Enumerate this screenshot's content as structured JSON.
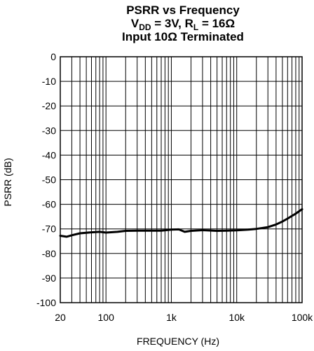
{
  "chart_data": {
    "type": "line",
    "title_lines": {
      "line1": "PSRR vs Frequency",
      "line2_v": "V",
      "line2_v_sub": "DD",
      "line2_mid": " = 3V, R",
      "line2_r_sub": "L",
      "line2_end": " = 16Ω",
      "line3": "Input 10Ω Terminated"
    },
    "xlabel": "FREQUENCY (Hz)",
    "ylabel": "PSRR (dB)",
    "x_scale": "log",
    "xlim": [
      20,
      100000
    ],
    "ylim": [
      -100,
      0
    ],
    "grid": true,
    "x_tick_values": [
      20,
      100,
      1000,
      10000,
      100000
    ],
    "x_tick_labels": [
      "20",
      "100",
      "1k",
      "10k",
      "100k"
    ],
    "y_tick_values": [
      0,
      -10,
      -20,
      -30,
      -40,
      -50,
      -60,
      -70,
      -80,
      -90,
      -100
    ],
    "y_tick_labels": [
      "0",
      "-10",
      "-20",
      "-30",
      "-40",
      "-50",
      "-60",
      "-70",
      "-80",
      "-90",
      "-100"
    ],
    "series": [
      {
        "color": "#000000",
        "x": [
          20,
          25,
          30,
          40,
          60,
          80,
          100,
          150,
          200,
          300,
          500,
          700,
          1000,
          1300,
          1600,
          2000,
          3000,
          5000,
          7000,
          10000,
          15000,
          20000,
          30000,
          40000,
          50000,
          60000,
          70000,
          80000,
          100000
        ],
        "y": [
          -72.8,
          -73.2,
          -72.6,
          -71.8,
          -71.4,
          -71.2,
          -71.5,
          -71.2,
          -70.8,
          -70.7,
          -70.7,
          -70.7,
          -70.3,
          -70.2,
          -71.2,
          -70.8,
          -70.5,
          -70.8,
          -70.7,
          -70.6,
          -70.3,
          -70.0,
          -69.3,
          -68.2,
          -67.0,
          -65.8,
          -64.7,
          -63.8,
          -62.0
        ]
      }
    ]
  }
}
